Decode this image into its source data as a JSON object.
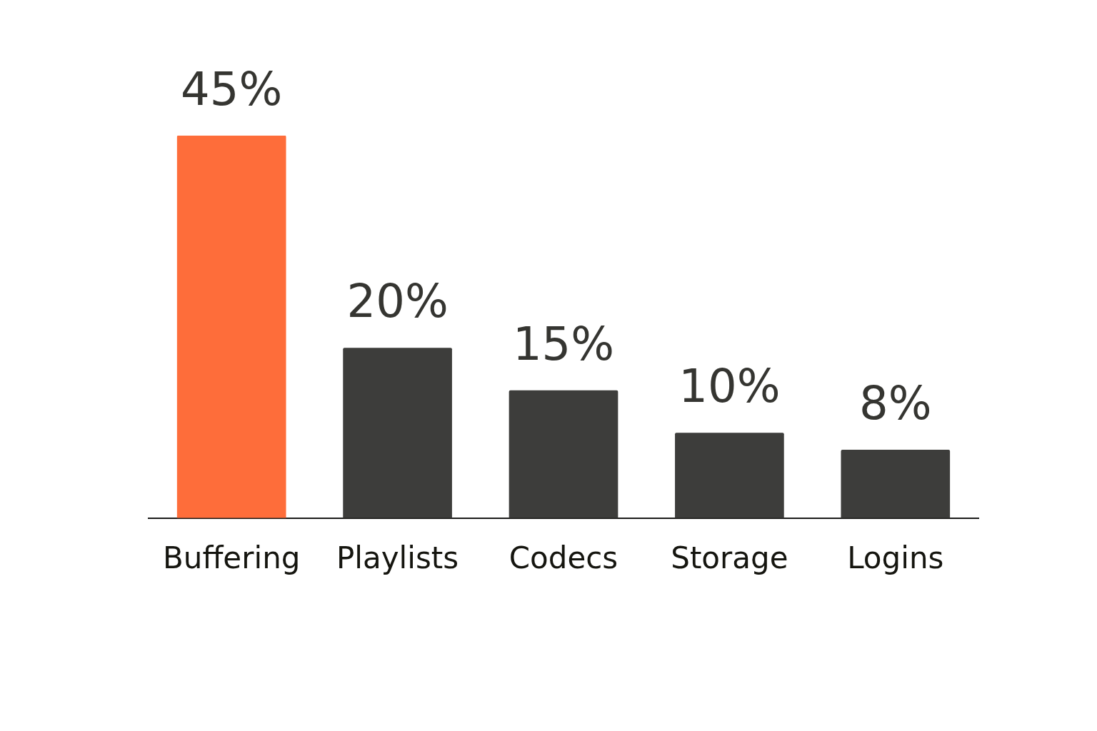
{
  "chart_data": {
    "type": "bar",
    "categories": [
      "Buffering",
      "Playlists",
      "Codecs",
      "Storage",
      "Logins"
    ],
    "values": [
      45,
      20,
      15,
      10,
      8
    ],
    "colors": [
      "#fe6d3a",
      "#3d3d3b",
      "#3d3d3b",
      "#3d3d3b",
      "#3d3d3b"
    ],
    "value_labels": [
      "45%",
      "20%",
      "15%",
      "10%",
      "8%"
    ],
    "tick_labels": "x",
    "grid": false,
    "legend": false
  }
}
